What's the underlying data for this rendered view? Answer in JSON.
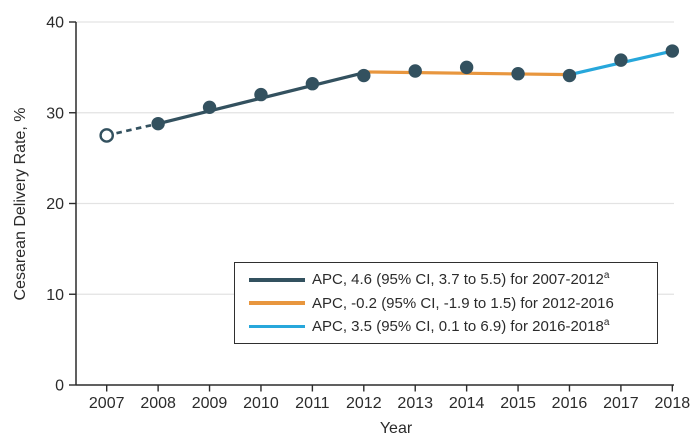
{
  "chart_data": {
    "type": "line",
    "title": "",
    "xlabel": "Year",
    "ylabel": "Cesarean Delivery Rate, %",
    "xlim": [
      2007,
      2018
    ],
    "ylim": [
      0,
      40
    ],
    "yticks": [
      0,
      10,
      20,
      30,
      40
    ],
    "x": [
      2007,
      2008,
      2009,
      2010,
      2011,
      2012,
      2013,
      2014,
      2015,
      2016,
      2017,
      2018
    ],
    "grid": "horizontal",
    "marker_color": "#33515F",
    "open_marker": {
      "year": 2007,
      "value": 27.5,
      "note": "open circle marker"
    },
    "points": {
      "years": [
        2007,
        2008,
        2009,
        2010,
        2011,
        2012,
        2013,
        2014,
        2015,
        2016,
        2017,
        2018
      ],
      "values": [
        27.5,
        28.8,
        30.6,
        32.0,
        33.2,
        34.1,
        34.6,
        35.0,
        34.3,
        34.1,
        35.8,
        36.8
      ]
    },
    "segments": [
      {
        "name": "dashed-lead-in-2007-2008",
        "style": "dashed",
        "color": "#33515F",
        "x": [
          2007,
          2008
        ],
        "y": [
          27.5,
          28.8
        ]
      },
      {
        "name": "apc-2007-2012",
        "style": "solid",
        "color": "#33515F",
        "x": [
          2008,
          2012
        ],
        "y": [
          28.8,
          34.4
        ]
      },
      {
        "name": "apc-2012-2016",
        "style": "solid",
        "color": "#E8963E",
        "x": [
          2012,
          2016
        ],
        "y": [
          34.5,
          34.2
        ]
      },
      {
        "name": "apc-2016-2018",
        "style": "solid",
        "color": "#27A7DB",
        "x": [
          2016,
          2018
        ],
        "y": [
          34.2,
          36.8
        ]
      }
    ],
    "legend": {
      "position": "inside-bottom-right",
      "entries": [
        {
          "label": "APC, 4.6 (95% CI, 3.7 to 5.5) for 2007-2012",
          "sup": "a",
          "color": "#33515F"
        },
        {
          "label": "APC, -0.2 (95% CI, -1.9 to 1.5) for 2012-2016",
          "sup": "",
          "color": "#E8963E"
        },
        {
          "label": "APC, 3.5 (95% CI, 0.1 to 6.9) for 2016-2018",
          "sup": "a",
          "color": "#27A7DB"
        }
      ]
    }
  },
  "colors": {
    "axis": "#2B2B2B",
    "grid": "#E3E3E3",
    "background": "#FFFFFF",
    "dark_series": "#33515F",
    "orange_series": "#E8963E",
    "blue_series": "#27A7DB"
  }
}
